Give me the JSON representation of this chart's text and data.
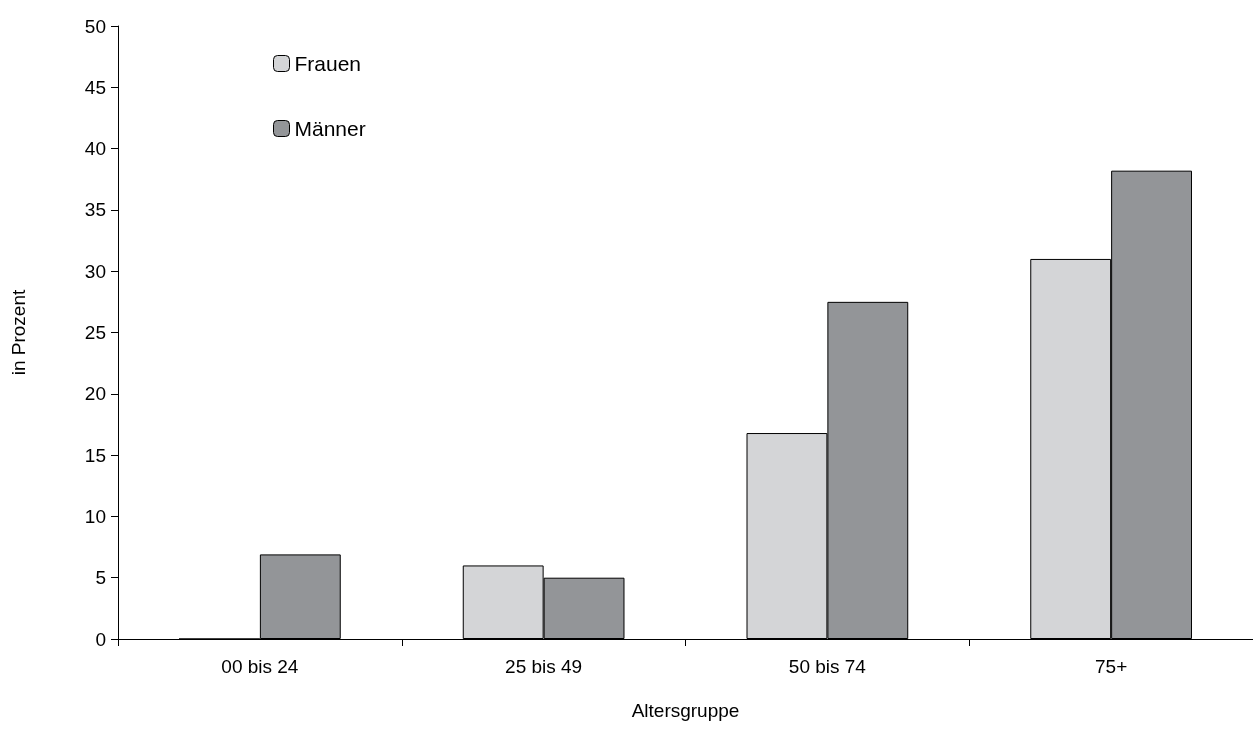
{
  "chart_data": {
    "type": "bar",
    "xlabel": "Altersgruppe",
    "ylabel": "in Prozent",
    "categories": [
      "00 bis 24",
      "25 bis 49",
      "50 bis 74",
      "75+"
    ],
    "series": [
      {
        "name": "Frauen",
        "color": "#d4d5d7",
        "values": [
          0,
          6.0,
          16.8,
          31.0
        ]
      },
      {
        "name": "Männer",
        "color": "#939598",
        "values": [
          6.9,
          5.0,
          27.5,
          38.2
        ]
      }
    ],
    "ylim": [
      0,
      50
    ],
    "yticks": [
      0,
      5,
      10,
      15,
      20,
      25,
      30,
      35,
      40,
      45,
      50
    ],
    "grid": false,
    "legend": "top left"
  }
}
